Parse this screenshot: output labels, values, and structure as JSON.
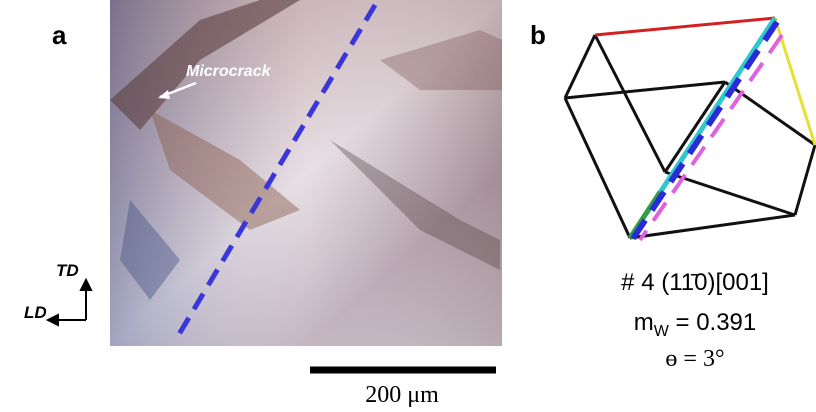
{
  "panel_a": {
    "label": "a",
    "annotation": "Microcrack",
    "axis_up": "TD",
    "axis_left": "LD",
    "scale_bar": "200 μm"
  },
  "panel_b": {
    "label": "b",
    "slip_system": "# 4 (11̄0)[001]",
    "schmid_symbol": "m",
    "schmid_subscript": "W",
    "schmid_value": " = 0.391",
    "angle": "ɵ = 3°"
  }
}
